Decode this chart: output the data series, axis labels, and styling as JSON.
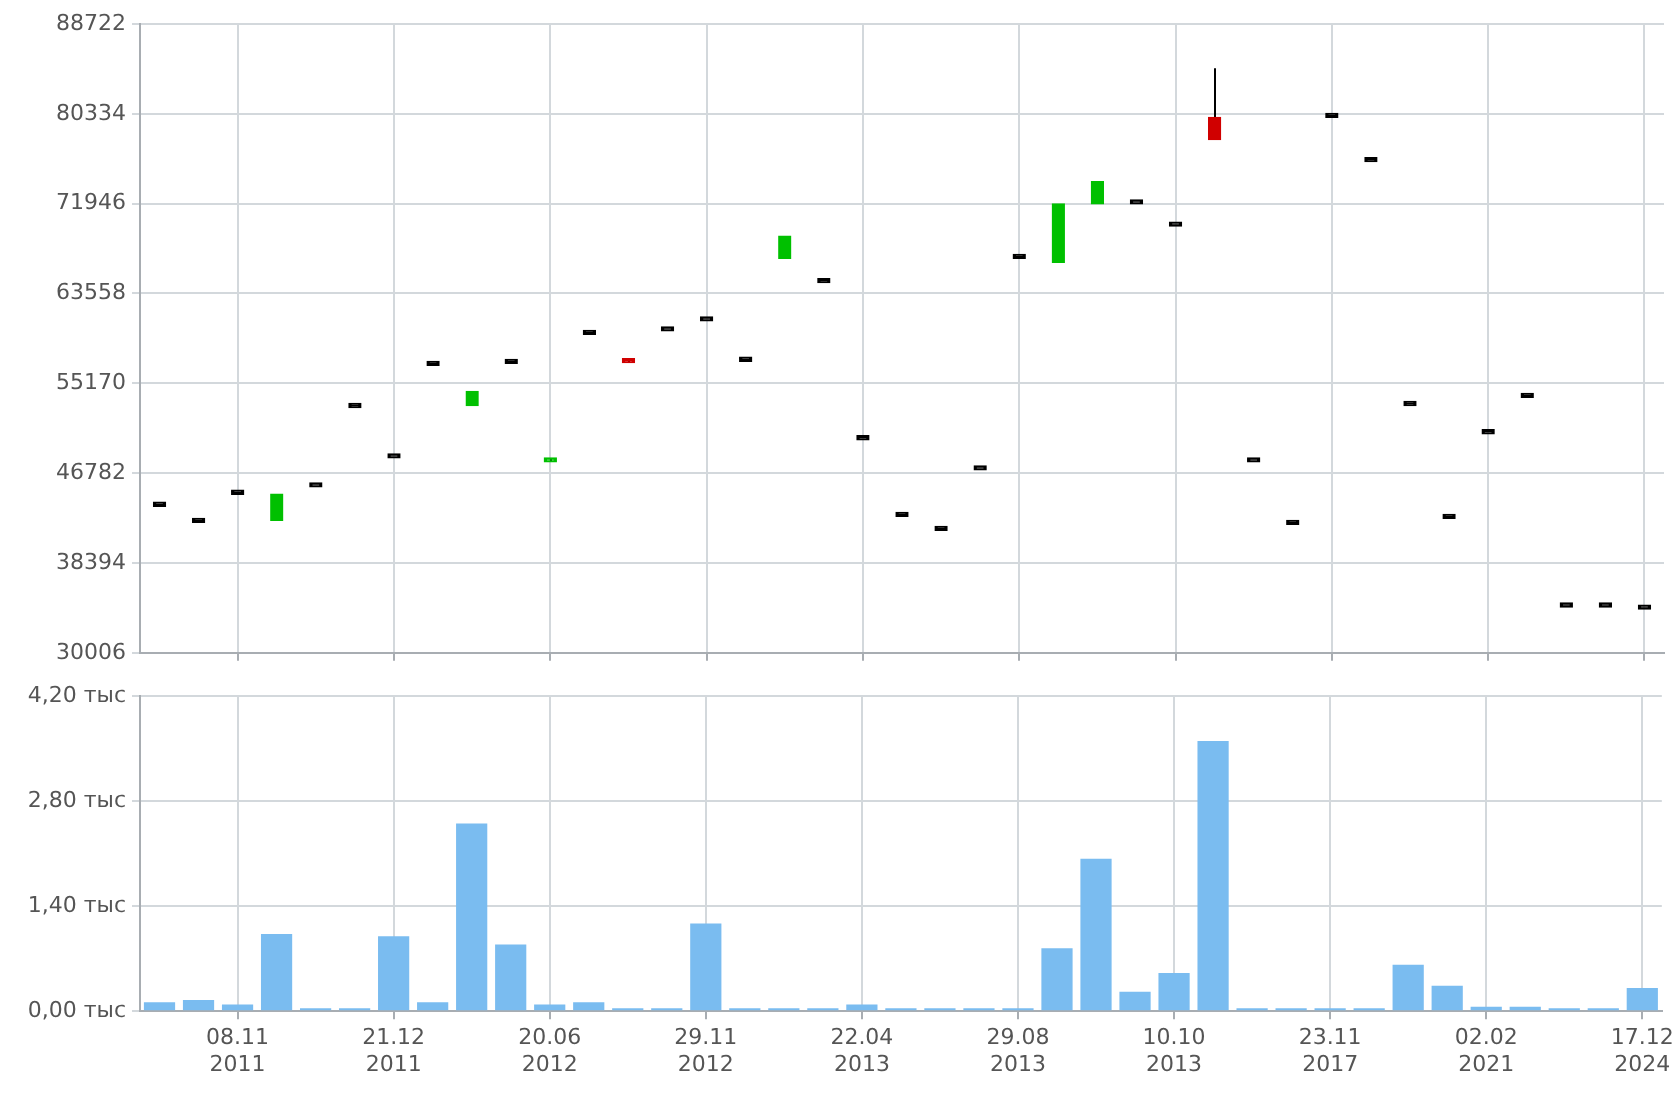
{
  "chart_data": [
    {
      "type": "candlestick",
      "categories": [
        null,
        null,
        null,
        null,
        null,
        null,
        null,
        null,
        null,
        null,
        null,
        null,
        null,
        null,
        null,
        null,
        null,
        null,
        null,
        null,
        null,
        null,
        null,
        null,
        null,
        null,
        null,
        null,
        null,
        null,
        null,
        null,
        null,
        null,
        null,
        null,
        null,
        null,
        null
      ],
      "ohlc": [
        [
          43690,
          43690,
          43690,
          43690
        ],
        [
          42180,
          42180,
          42180,
          42180
        ],
        [
          44810,
          44810,
          44810,
          44810
        ],
        [
          42370,
          44810,
          42370,
          44810
        ],
        [
          45500,
          45500,
          45500,
          45500
        ],
        [
          52910,
          52910,
          52910,
          52910
        ],
        [
          48200,
          48200,
          48200,
          48200
        ],
        [
          56850,
          56850,
          56850,
          56850
        ],
        [
          53100,
          54410,
          53100,
          54410
        ],
        [
          57040,
          57040,
          57040,
          57040
        ],
        [
          47830,
          48200,
          47830,
          48200
        ],
        [
          59740,
          59740,
          59740,
          59740
        ],
        [
          57350,
          57350,
          57100,
          57100
        ],
        [
          60060,
          60060,
          60060,
          60060
        ],
        [
          61000,
          61000,
          61000,
          61000
        ],
        [
          57230,
          57230,
          57230,
          57230
        ],
        [
          66830,
          68900,
          66830,
          68900
        ],
        [
          64570,
          64570,
          64570,
          64570
        ],
        [
          49900,
          49900,
          49900,
          49900
        ],
        [
          42750,
          42750,
          42750,
          42750
        ],
        [
          41430,
          41430,
          41430,
          41430
        ],
        [
          47080,
          47080,
          47080,
          47080
        ],
        [
          66830,
          66830,
          66830,
          66830
        ],
        [
          66460,
          71920,
          66460,
          71920
        ],
        [
          71920,
          73990,
          71920,
          73990
        ],
        [
          71920,
          71920,
          71920,
          71920
        ],
        [
          69850,
          69850,
          69850,
          69850
        ],
        [
          80000,
          84580,
          77940,
          77940
        ],
        [
          47830,
          47830,
          47830,
          47830
        ],
        [
          41990,
          41990,
          41990,
          41990
        ],
        [
          80010,
          80010,
          80010,
          80010
        ],
        [
          75870,
          75870,
          75870,
          75870
        ],
        [
          53100,
          53100,
          53100,
          53100
        ],
        [
          42560,
          42560,
          42560,
          42560
        ],
        [
          50460,
          50460,
          50460,
          50460
        ],
        [
          53850,
          53850,
          53850,
          53850
        ],
        [
          34280,
          34280,
          34280,
          34280
        ],
        [
          34280,
          34280,
          34280,
          34280
        ],
        [
          34090,
          34090,
          34090,
          34090
        ]
      ],
      "colors": [
        "#000000",
        "#000000",
        "#000000",
        "#00c000",
        "#000000",
        "#000000",
        "#000000",
        "#000000",
        "#00c000",
        "#000000",
        "#00c000",
        "#000000",
        "#d00000",
        "#000000",
        "#000000",
        "#000000",
        "#00c000",
        "#000000",
        "#000000",
        "#000000",
        "#000000",
        "#000000",
        "#000000",
        "#00c000",
        "#00c000",
        "#000000",
        "#000000",
        "#d00000",
        "#000000",
        "#000000",
        "#000000",
        "#000000",
        "#000000",
        "#000000",
        "#000000",
        "#000000",
        "#000000",
        "#000000",
        "#000000"
      ],
      "ylim": [
        30006,
        88722
      ],
      "yticks": [
        30006,
        38394,
        46782,
        55170,
        63558,
        71946,
        80334,
        88722
      ],
      "grid": true,
      "tick_labels": "y"
    },
    {
      "type": "bar",
      "categories": [
        null,
        null,
        "08.11 2011",
        null,
        null,
        null,
        "21.12 2011",
        null,
        null,
        null,
        "20.06 2012",
        null,
        null,
        null,
        "29.11 2012",
        null,
        null,
        null,
        "22.04 2013",
        null,
        null,
        null,
        "29.08 2013",
        null,
        null,
        null,
        "10.10 2013",
        null,
        null,
        null,
        "23.11 2017",
        null,
        null,
        null,
        "02.02 2021",
        null,
        null,
        null,
        "17.12 2024"
      ],
      "values": [
        0.12,
        0.15,
        0.09,
        1.03,
        0.04,
        0.04,
        1.0,
        0.12,
        2.5,
        0.89,
        0.09,
        0.12,
        0.04,
        0.04,
        1.17,
        0.04,
        0.04,
        0.04,
        0.09,
        0.04,
        0.04,
        0.04,
        0.04,
        0.84,
        2.03,
        0.26,
        0.51,
        3.6,
        0.04,
        0.04,
        0.04,
        0.04,
        0.62,
        0.34,
        0.06,
        0.06,
        0.04,
        0.04,
        0.31
      ],
      "color": "#7abcf0",
      "ylim": [
        0,
        4.2
      ],
      "yticks": [
        {
          "value": 0,
          "label": "0,00 тыс"
        },
        {
          "value": 1.4,
          "label": "1,40 тыс"
        },
        {
          "value": 2.8,
          "label": "2,80 тыс"
        },
        {
          "value": 4.2,
          "label": "4,20 тыс"
        }
      ],
      "grid": true
    }
  ]
}
